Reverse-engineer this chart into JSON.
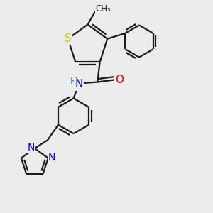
{
  "background_color": "#ebebeb",
  "bond_color": "#1a1a1a",
  "atom_colors": {
    "S": "#cccc00",
    "N": "#0000ee",
    "O": "#ee0000",
    "H": "#008888",
    "C": "#1a1a1a"
  },
  "line_width": 1.6,
  "font_size": 10
}
